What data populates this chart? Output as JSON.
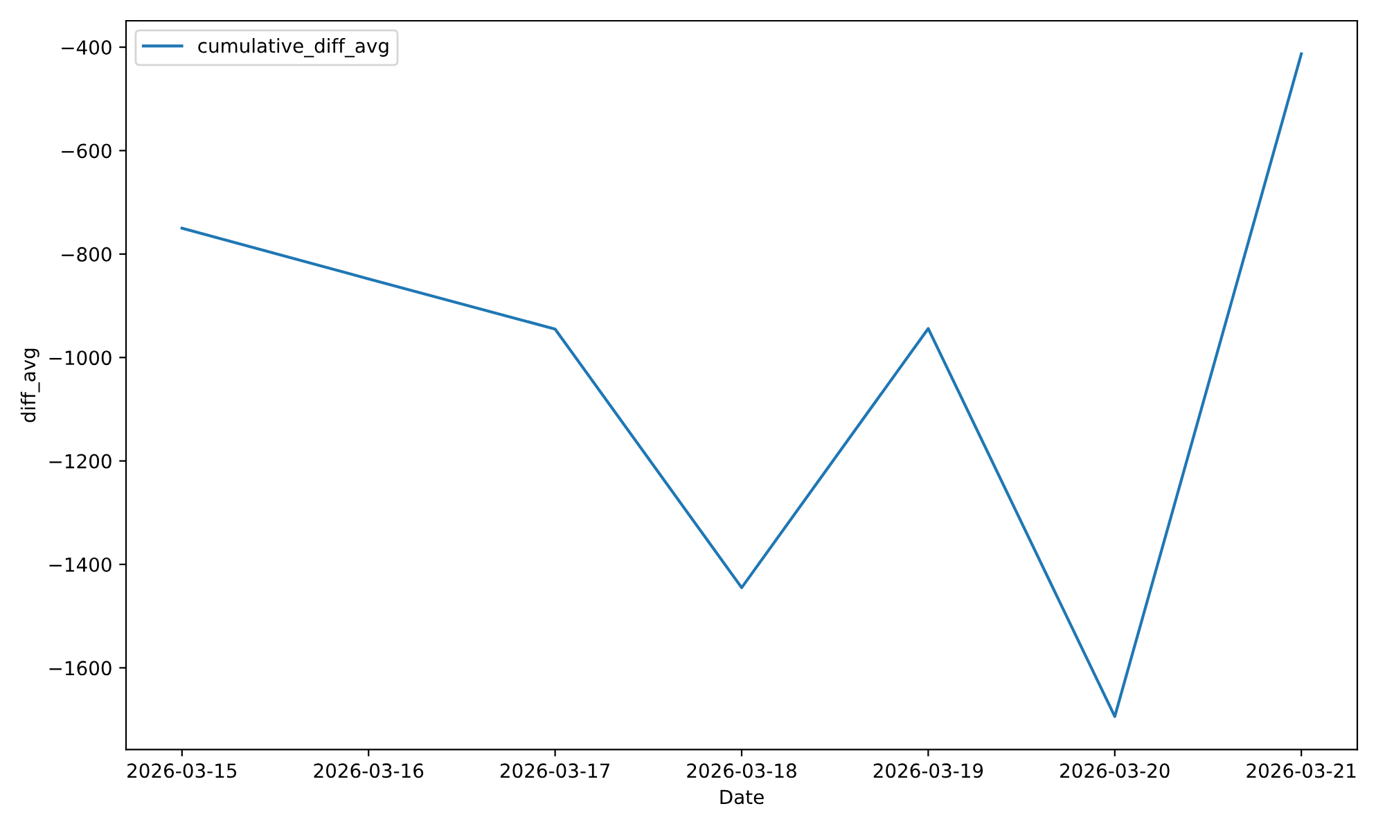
{
  "chart_data": {
    "type": "line",
    "xlabel": "Date",
    "ylabel": "diff_avg",
    "x": [
      "2026-03-15",
      "2026-03-16",
      "2026-03-17",
      "2026-03-18",
      "2026-03-19",
      "2026-03-20",
      "2026-03-21"
    ],
    "series": [
      {
        "name": "cumulative_diff_avg",
        "color": "#1f77b4",
        "values": [
          -750,
          -848,
          -945,
          -1445,
          -944,
          -1694,
          -413
        ]
      }
    ],
    "xlim": [
      "2026-03-14T16:48",
      "2026-03-21T07:12"
    ],
    "xticks": [
      "2026-03-15",
      "2026-03-16",
      "2026-03-17",
      "2026-03-18",
      "2026-03-19",
      "2026-03-20",
      "2026-03-21"
    ],
    "ylim": [
      -1758,
      -349
    ],
    "yticks": [
      -1600,
      -1400,
      -1200,
      -1000,
      -800,
      -600,
      -400
    ],
    "legend": "top left",
    "grid": false,
    "marker": "none",
    "line_style": "solid"
  }
}
